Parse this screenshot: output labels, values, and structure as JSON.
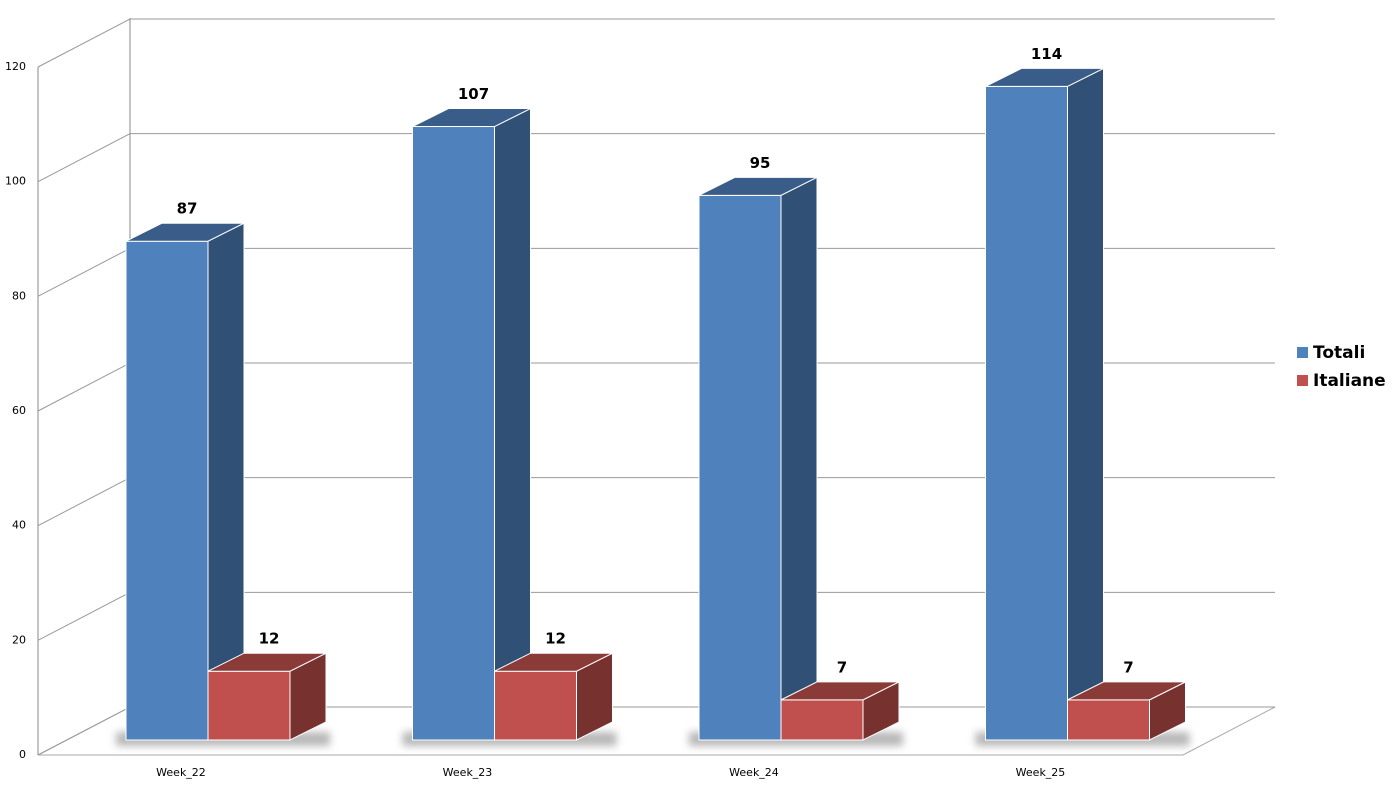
{
  "chart_data": {
    "type": "bar3d",
    "categories": [
      "Week_22",
      "Week_23",
      "Week_24",
      "Week_25"
    ],
    "series": [
      {
        "name": "Totali",
        "color": "#4f81bd",
        "values": [
          87,
          107,
          95,
          114
        ]
      },
      {
        "name": "Italiane",
        "color": "#c0504d",
        "values": [
          12,
          12,
          7,
          7
        ]
      }
    ],
    "ylim": [
      0,
      120
    ],
    "yticks": [
      0,
      20,
      40,
      60,
      80,
      100,
      120
    ],
    "grid": true,
    "legend": "right"
  }
}
